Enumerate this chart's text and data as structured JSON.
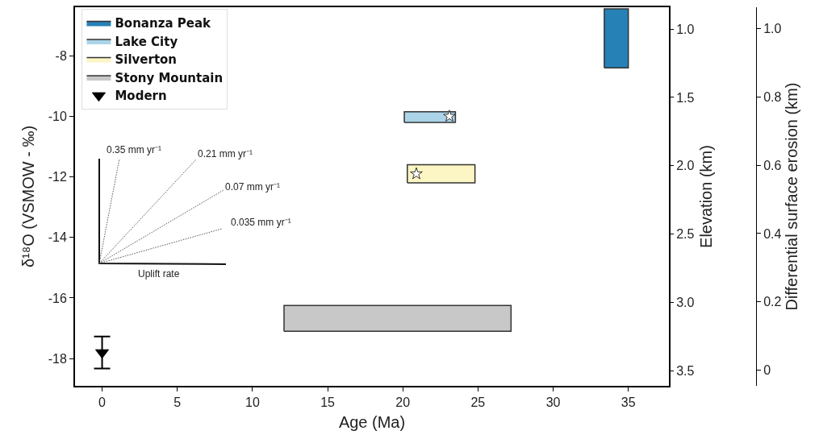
{
  "chart_data": {
    "type": "area",
    "xlabel": "Age (Ma)",
    "ylabel": "δ¹⁸O (VSMOW - ‰)",
    "y2label": "Elevation (km)",
    "y3label": "Differential surface erosion (km)",
    "xlim": [
      -1.8,
      37.7
    ],
    "xticks": [
      0,
      5,
      10,
      15,
      20,
      25,
      30,
      35
    ],
    "ylim": [
      -18.9,
      -6.4
    ],
    "yticks": [
      -18,
      -16,
      -14,
      -12,
      -10,
      -8
    ],
    "y2lim": [
      3.61,
      0.84
    ],
    "y2ticks": [
      {
        "value": 1,
        "label": "1.0"
      },
      1.5,
      {
        "value": 2,
        "label": "2.0"
      },
      2.5,
      {
        "value": 3,
        "label": "3.0"
      },
      3.5
    ],
    "y3lim": [
      -0.046,
      1.063
    ],
    "y3ticks": [
      0,
      0.2,
      0.4,
      0.6,
      0.8,
      {
        "value": 1,
        "label": "1.0"
      }
    ],
    "grid": false,
    "legend": "top left",
    "series": [
      {
        "name": "Bonanza Peak",
        "color": "#2681b6",
        "x": [
          33.4,
          35.0,
          35.0,
          33.4,
          33.4
        ],
        "values": [
          -8.4,
          -8.4,
          -6.45,
          -6.45,
          -8.4
        ]
      },
      {
        "name": "Lake City",
        "color": "#abd4e8",
        "x": [
          20.1,
          23.5,
          23.5,
          20.1,
          20.1
        ],
        "values": [
          -10.2,
          -10.2,
          -9.85,
          -9.85,
          -10.2
        ]
      },
      {
        "name": "Silverton",
        "color": "#fcf6c4",
        "x": [
          20.3,
          24.8,
          24.8,
          20.3,
          20.3
        ],
        "values": [
          -12.2,
          -12.2,
          -11.6,
          -11.6,
          -12.2
        ]
      },
      {
        "name": "Stony Mountain",
        "color": "#c8c8c8",
        "x": [
          12.1,
          27.2,
          27.2,
          12.1,
          12.1
        ],
        "values": [
          -17.1,
          -17.1,
          -16.25,
          -16.25,
          -17.1
        ]
      },
      {
        "name": "Modern",
        "type": "scatter",
        "color": "#000000",
        "marker": "triangle",
        "x": [
          0
        ],
        "values": [
          -17.8
        ],
        "errors": [
          0.53
        ]
      },
      {
        "type": "scatter",
        "color": "#ffffff",
        "marker": "star",
        "x": [
          23.1,
          20.9
        ],
        "values": [
          -10.0,
          -11.9
        ]
      }
    ],
    "annotations": [
      "0.35 mm yr⁻¹",
      "0.21 mm yr⁻¹",
      "0.07 mm yr⁻¹",
      "0.035 mm yr⁻¹",
      "Uplift rate"
    ]
  }
}
